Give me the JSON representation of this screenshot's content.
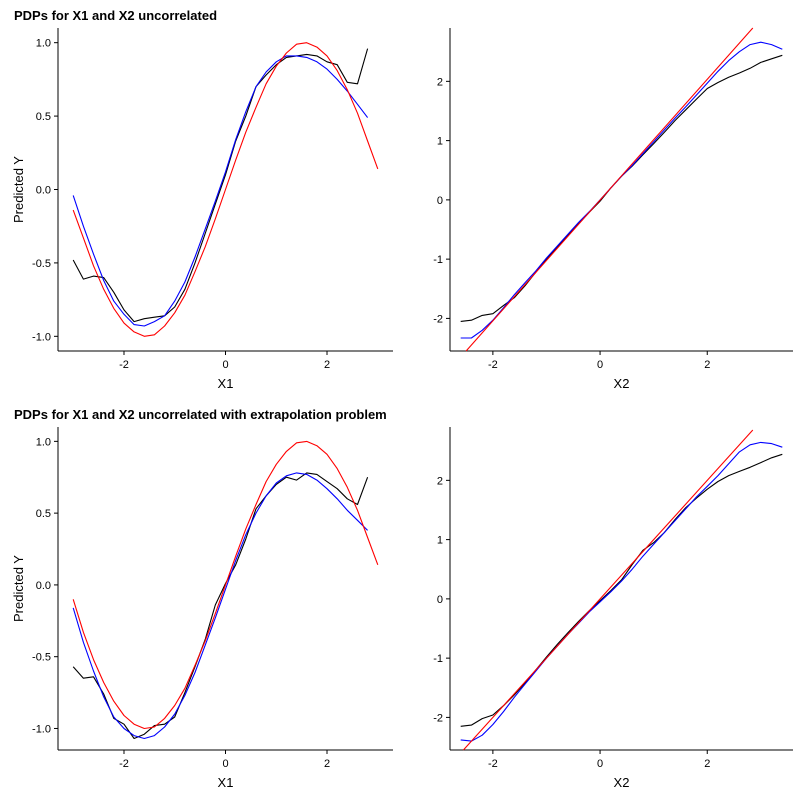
{
  "titles": {
    "top": "PDPs for X1 and X2 uncorrelated",
    "bottom": "PDPs for X1 and X2 uncorrelated with extrapolation problem"
  },
  "chart_data": [
    {
      "type": "line",
      "xlabel": "X1",
      "ylabel": "Predicted Y",
      "xlim": [
        -3.3,
        3.3
      ],
      "ylim": [
        -1.1,
        1.1
      ],
      "xticks": [
        -2,
        0,
        2
      ],
      "xtick_labels": [
        "-2",
        "0",
        "2"
      ],
      "yticks": [
        -1.0,
        -0.5,
        0.0,
        0.5,
        1.0
      ],
      "ytick_labels": [
        "-1.0",
        "-0.5",
        "0.0",
        "0.5",
        "1.0"
      ],
      "grid": false,
      "series": [
        {
          "color": "#000000",
          "x": [
            -3.0,
            -2.8,
            -2.6,
            -2.4,
            -2.2,
            -2.0,
            -1.8,
            -1.6,
            -1.4,
            -1.2,
            -1.0,
            -0.8,
            -0.6,
            -0.4,
            -0.2,
            0.0,
            0.2,
            0.4,
            0.6,
            0.8,
            1.0,
            1.2,
            1.4,
            1.6,
            1.8,
            2.0,
            2.2,
            2.4,
            2.6,
            2.8
          ],
          "y": [
            -0.48,
            -0.61,
            -0.59,
            -0.6,
            -0.7,
            -0.82,
            -0.9,
            -0.88,
            -0.87,
            -0.86,
            -0.8,
            -0.68,
            -0.5,
            -0.3,
            -0.1,
            0.1,
            0.33,
            0.5,
            0.7,
            0.78,
            0.85,
            0.9,
            0.91,
            0.92,
            0.91,
            0.87,
            0.85,
            0.73,
            0.72,
            0.96
          ]
        },
        {
          "color": "#0000ff",
          "x": [
            -3.0,
            -2.8,
            -2.6,
            -2.4,
            -2.2,
            -2.0,
            -1.8,
            -1.6,
            -1.4,
            -1.2,
            -1.0,
            -0.8,
            -0.6,
            -0.4,
            -0.2,
            0.0,
            0.2,
            0.4,
            0.6,
            0.8,
            1.0,
            1.2,
            1.4,
            1.6,
            1.8,
            2.0,
            2.2,
            2.4,
            2.6,
            2.8
          ],
          "y": [
            -0.04,
            -0.25,
            -0.44,
            -0.62,
            -0.76,
            -0.85,
            -0.92,
            -0.93,
            -0.9,
            -0.86,
            -0.76,
            -0.63,
            -0.46,
            -0.27,
            -0.08,
            0.12,
            0.34,
            0.53,
            0.7,
            0.8,
            0.87,
            0.91,
            0.91,
            0.9,
            0.87,
            0.82,
            0.75,
            0.67,
            0.58,
            0.49
          ]
        },
        {
          "color": "#ff0000",
          "x": [
            -3.0,
            -2.8,
            -2.6,
            -2.4,
            -2.2,
            -2.0,
            -1.8,
            -1.6,
            -1.4,
            -1.2,
            -1.0,
            -0.8,
            -0.6,
            -0.4,
            -0.2,
            0.0,
            0.2,
            0.4,
            0.6,
            0.8,
            1.0,
            1.2,
            1.4,
            1.6,
            1.8,
            2.0,
            2.2,
            2.4,
            2.6,
            2.8,
            3.0
          ],
          "y": [
            -0.14,
            -0.33,
            -0.52,
            -0.68,
            -0.81,
            -0.91,
            -0.97,
            -1.0,
            -0.99,
            -0.93,
            -0.84,
            -0.72,
            -0.56,
            -0.39,
            -0.2,
            0.0,
            0.2,
            0.39,
            0.56,
            0.72,
            0.84,
            0.93,
            0.99,
            1.0,
            0.97,
            0.91,
            0.81,
            0.68,
            0.52,
            0.33,
            0.14
          ]
        }
      ]
    },
    {
      "type": "line",
      "xlabel": "X2",
      "ylabel": "",
      "xlim": [
        -2.8,
        3.6
      ],
      "ylim": [
        -2.55,
        2.9
      ],
      "xticks": [
        -2,
        0,
        2
      ],
      "xtick_labels": [
        "-2",
        "0",
        "2"
      ],
      "yticks": [
        -2,
        -1,
        0,
        1,
        2
      ],
      "ytick_labels": [
        "-2",
        "-1",
        "0",
        "1",
        "2"
      ],
      "grid": false,
      "series": [
        {
          "color": "#000000",
          "x": [
            -2.6,
            -2.4,
            -2.2,
            -2.0,
            -1.8,
            -1.6,
            -1.4,
            -1.2,
            -1.0,
            -0.8,
            -0.6,
            -0.4,
            -0.2,
            0.0,
            0.2,
            0.4,
            0.6,
            0.8,
            1.0,
            1.2,
            1.4,
            1.6,
            1.8,
            2.0,
            2.2,
            2.4,
            2.6,
            2.8,
            3.0,
            3.2,
            3.4
          ],
          "y": [
            -2.05,
            -2.03,
            -1.95,
            -1.92,
            -1.78,
            -1.65,
            -1.45,
            -1.22,
            -1.0,
            -0.8,
            -0.6,
            -0.4,
            -0.21,
            -0.02,
            0.2,
            0.4,
            0.57,
            0.76,
            0.95,
            1.14,
            1.34,
            1.52,
            1.7,
            1.88,
            1.98,
            2.07,
            2.14,
            2.22,
            2.32,
            2.38,
            2.44
          ]
        },
        {
          "color": "#0000ff",
          "x": [
            -2.6,
            -2.4,
            -2.2,
            -2.0,
            -1.8,
            -1.6,
            -1.4,
            -1.2,
            -1.0,
            -0.8,
            -0.6,
            -0.4,
            -0.2,
            0.0,
            0.2,
            0.4,
            0.6,
            0.8,
            1.0,
            1.2,
            1.4,
            1.6,
            1.8,
            2.0,
            2.2,
            2.4,
            2.6,
            2.8,
            3.0,
            3.2,
            3.4
          ],
          "y": [
            -2.33,
            -2.33,
            -2.2,
            -2.03,
            -1.82,
            -1.6,
            -1.4,
            -1.2,
            -0.98,
            -0.78,
            -0.58,
            -0.38,
            -0.2,
            0.0,
            0.2,
            0.4,
            0.58,
            0.78,
            0.98,
            1.18,
            1.38,
            1.57,
            1.77,
            1.97,
            2.17,
            2.35,
            2.5,
            2.62,
            2.66,
            2.62,
            2.54
          ]
        },
        {
          "color": "#ff0000",
          "x": [
            -2.5,
            2.85
          ],
          "y": [
            -2.55,
            2.9
          ]
        }
      ]
    },
    {
      "type": "line",
      "xlabel": "X1",
      "ylabel": "Predicted Y",
      "xlim": [
        -3.3,
        3.3
      ],
      "ylim": [
        -1.15,
        1.1
      ],
      "xticks": [
        -2,
        0,
        2
      ],
      "xtick_labels": [
        "-2",
        "0",
        "2"
      ],
      "yticks": [
        -1.0,
        -0.5,
        0.0,
        0.5,
        1.0
      ],
      "ytick_labels": [
        "-1.0",
        "-0.5",
        "0.0",
        "0.5",
        "1.0"
      ],
      "grid": false,
      "series": [
        {
          "color": "#000000",
          "x": [
            -3.0,
            -2.8,
            -2.6,
            -2.4,
            -2.2,
            -2.0,
            -1.8,
            -1.6,
            -1.4,
            -1.2,
            -1.0,
            -0.8,
            -0.6,
            -0.4,
            -0.2,
            0.0,
            0.2,
            0.4,
            0.6,
            0.8,
            1.0,
            1.2,
            1.4,
            1.6,
            1.8,
            2.0,
            2.2,
            2.4,
            2.6,
            2.8
          ],
          "y": [
            -0.57,
            -0.65,
            -0.64,
            -0.76,
            -0.93,
            -0.97,
            -1.07,
            -1.04,
            -0.98,
            -0.97,
            -0.92,
            -0.75,
            -0.57,
            -0.38,
            -0.14,
            0.01,
            0.14,
            0.32,
            0.53,
            0.62,
            0.7,
            0.75,
            0.73,
            0.78,
            0.77,
            0.72,
            0.67,
            0.6,
            0.56,
            0.75
          ]
        },
        {
          "color": "#0000ff",
          "x": [
            -3.0,
            -2.8,
            -2.6,
            -2.4,
            -2.2,
            -2.0,
            -1.8,
            -1.6,
            -1.4,
            -1.2,
            -1.0,
            -0.8,
            -0.6,
            -0.4,
            -0.2,
            0.0,
            0.2,
            0.4,
            0.6,
            0.8,
            1.0,
            1.2,
            1.4,
            1.6,
            1.8,
            2.0,
            2.2,
            2.4,
            2.6,
            2.8
          ],
          "y": [
            -0.16,
            -0.4,
            -0.6,
            -0.78,
            -0.92,
            -1.0,
            -1.05,
            -1.07,
            -1.05,
            -0.99,
            -0.9,
            -0.77,
            -0.61,
            -0.42,
            -0.23,
            -0.03,
            0.17,
            0.35,
            0.5,
            0.62,
            0.71,
            0.76,
            0.78,
            0.77,
            0.73,
            0.67,
            0.6,
            0.52,
            0.45,
            0.38
          ]
        },
        {
          "color": "#ff0000",
          "x": [
            -3.0,
            -2.8,
            -2.6,
            -2.4,
            -2.2,
            -2.0,
            -1.8,
            -1.6,
            -1.4,
            -1.2,
            -1.0,
            -0.8,
            -0.6,
            -0.4,
            -0.2,
            0.0,
            0.2,
            0.4,
            0.6,
            0.8,
            1.0,
            1.2,
            1.4,
            1.6,
            1.8,
            2.0,
            2.2,
            2.4,
            2.6,
            2.8,
            3.0
          ],
          "y": [
            -0.1,
            -0.33,
            -0.52,
            -0.68,
            -0.81,
            -0.91,
            -0.97,
            -1.0,
            -0.99,
            -0.93,
            -0.84,
            -0.72,
            -0.56,
            -0.39,
            -0.2,
            0.0,
            0.2,
            0.39,
            0.56,
            0.72,
            0.84,
            0.93,
            0.99,
            1.0,
            0.97,
            0.91,
            0.81,
            0.68,
            0.52,
            0.33,
            0.14
          ]
        }
      ]
    },
    {
      "type": "line",
      "xlabel": "X2",
      "ylabel": "",
      "xlim": [
        -2.8,
        3.6
      ],
      "ylim": [
        -2.55,
        2.9
      ],
      "xticks": [
        -2,
        0,
        2
      ],
      "xtick_labels": [
        "-2",
        "0",
        "2"
      ],
      "yticks": [
        -2,
        -1,
        0,
        1,
        2
      ],
      "ytick_labels": [
        "-2",
        "-1",
        "0",
        "1",
        "2"
      ],
      "grid": false,
      "series": [
        {
          "color": "#000000",
          "x": [
            -2.6,
            -2.4,
            -2.2,
            -2.0,
            -1.8,
            -1.6,
            -1.4,
            -1.2,
            -1.0,
            -0.8,
            -0.6,
            -0.4,
            -0.2,
            0.0,
            0.2,
            0.4,
            0.6,
            0.8,
            1.0,
            1.2,
            1.4,
            1.6,
            1.8,
            2.0,
            2.2,
            2.4,
            2.6,
            2.8,
            3.0,
            3.2,
            3.4
          ],
          "y": [
            -2.15,
            -2.13,
            -2.02,
            -1.96,
            -1.8,
            -1.62,
            -1.42,
            -1.2,
            -0.98,
            -0.77,
            -0.57,
            -0.38,
            -0.2,
            -0.03,
            0.14,
            0.32,
            0.58,
            0.82,
            0.95,
            1.12,
            1.34,
            1.54,
            1.7,
            1.85,
            1.98,
            2.08,
            2.15,
            2.22,
            2.3,
            2.38,
            2.44
          ]
        },
        {
          "color": "#0000ff",
          "x": [
            -2.6,
            -2.4,
            -2.2,
            -2.0,
            -1.8,
            -1.6,
            -1.4,
            -1.2,
            -1.0,
            -0.8,
            -0.6,
            -0.4,
            -0.2,
            0.0,
            0.2,
            0.4,
            0.6,
            0.8,
            1.0,
            1.2,
            1.4,
            1.6,
            1.8,
            2.0,
            2.2,
            2.4,
            2.6,
            2.8,
            3.0,
            3.2,
            3.4
          ],
          "y": [
            -2.38,
            -2.4,
            -2.3,
            -2.12,
            -1.9,
            -1.66,
            -1.44,
            -1.22,
            -1.0,
            -0.8,
            -0.6,
            -0.41,
            -0.22,
            -0.05,
            0.12,
            0.3,
            0.5,
            0.72,
            0.92,
            1.12,
            1.32,
            1.52,
            1.72,
            1.9,
            2.08,
            2.28,
            2.48,
            2.6,
            2.64,
            2.62,
            2.56
          ]
        },
        {
          "color": "#ff0000",
          "x": [
            -2.55,
            2.85
          ],
          "y": [
            -2.55,
            2.85
          ]
        }
      ]
    }
  ]
}
